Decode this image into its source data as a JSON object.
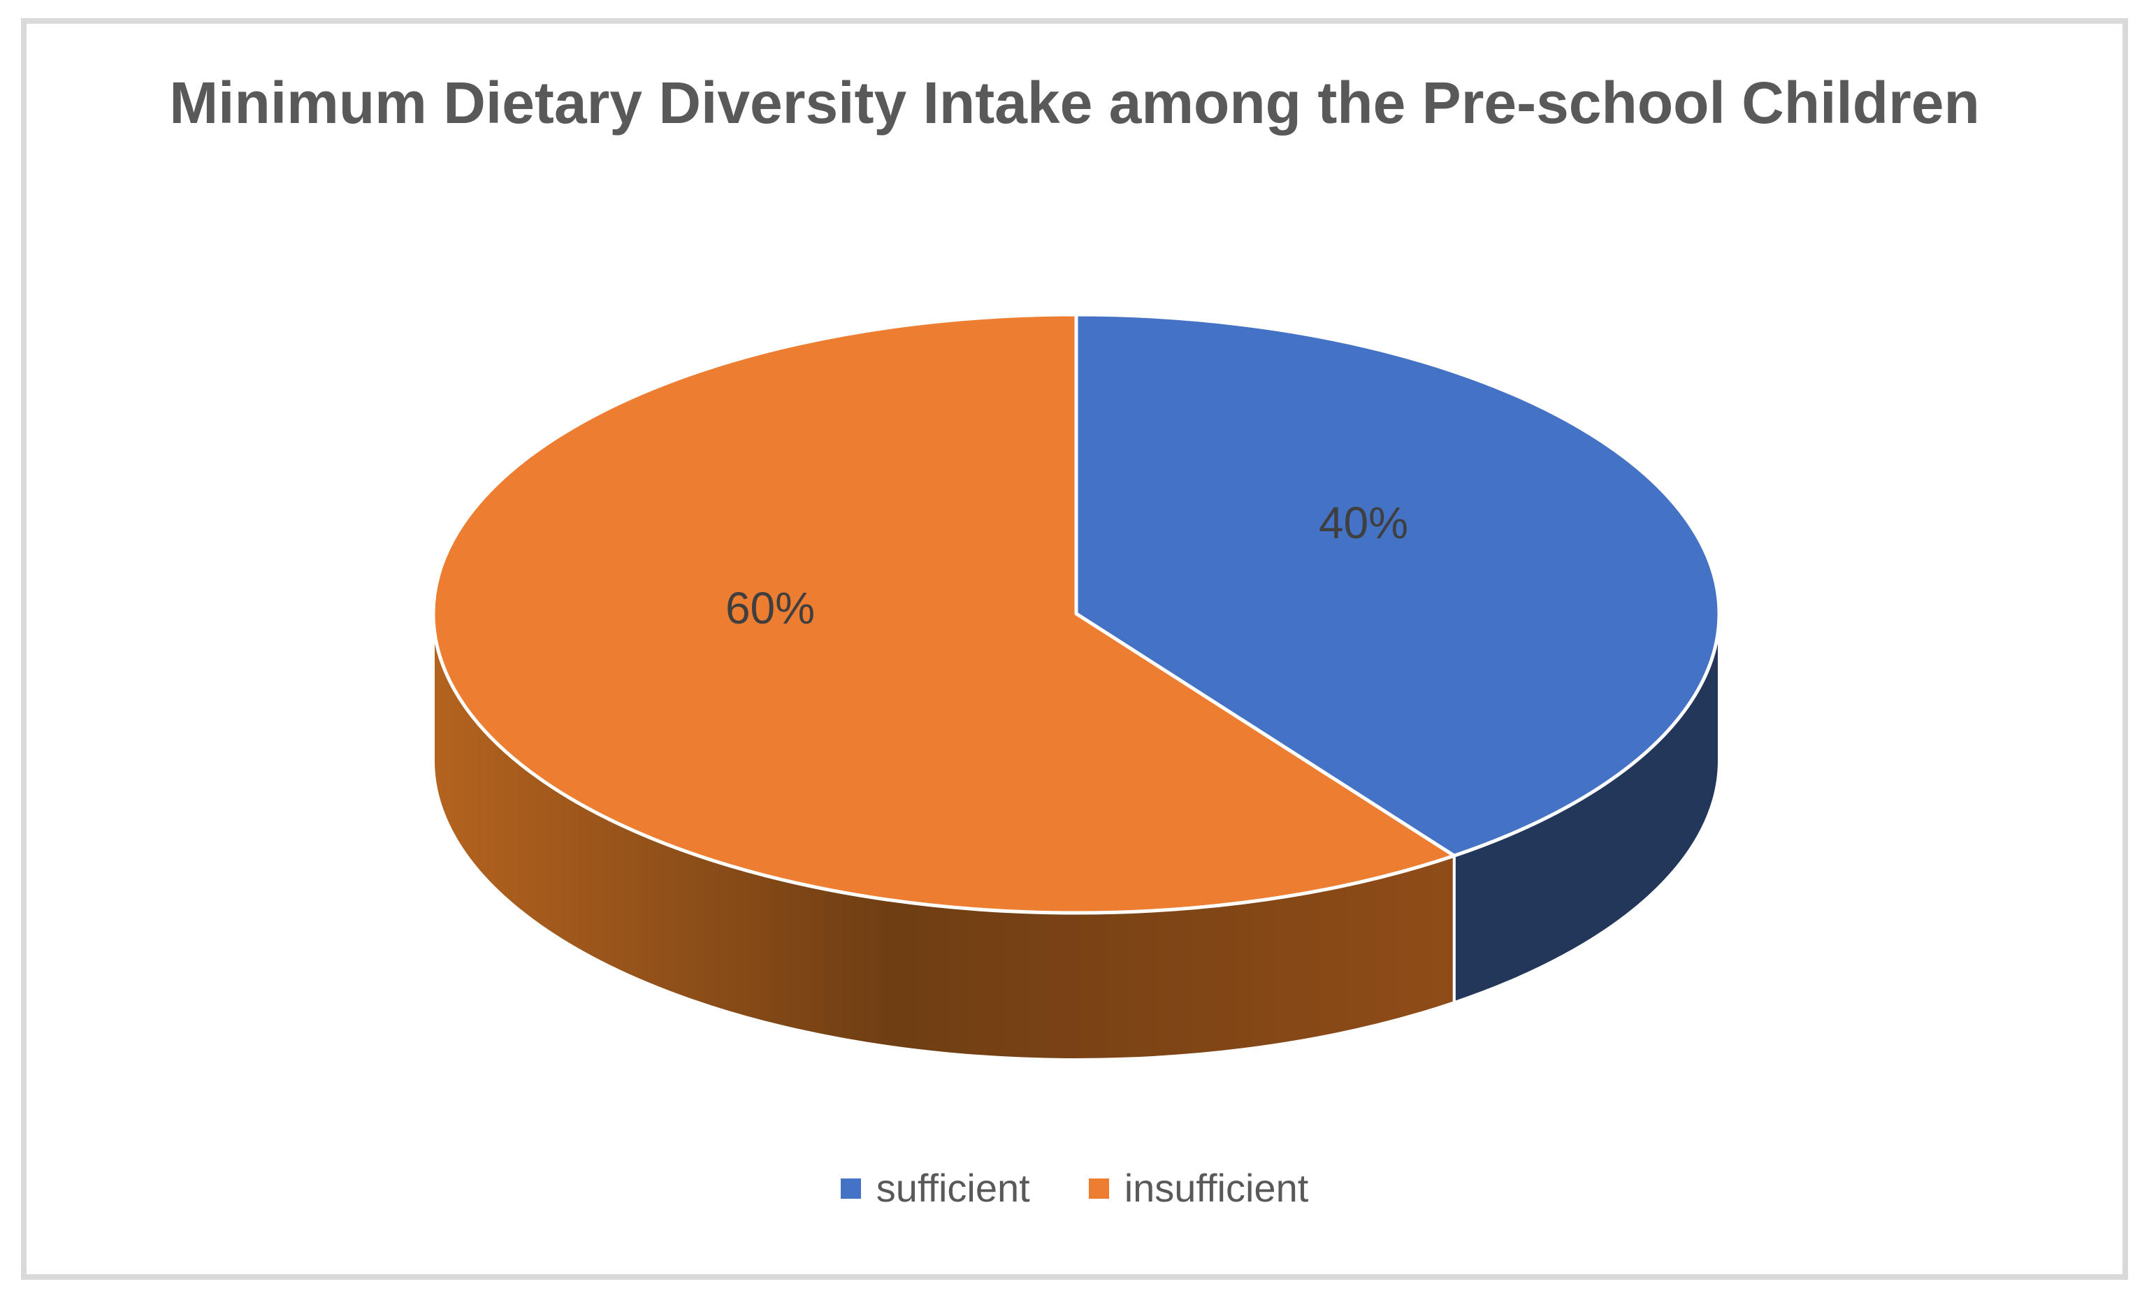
{
  "chart_data": {
    "type": "pie",
    "style": "3d-pie",
    "title": "Minimum Dietary Diversity Intake among the Pre-school Children",
    "unit": "percent",
    "start_angle": "12 o'clock, clockwise",
    "legend_position": "bottom",
    "background": "#FFFFFF",
    "categories": [
      "sufficient",
      "insufficient"
    ],
    "series": [
      {
        "name": "sufficient",
        "value": 40,
        "label": "40%",
        "color": "#4472C4",
        "side_color": "#22375A"
      },
      {
        "name": "insufficient",
        "value": 60,
        "label": "60%",
        "color": "#ED7D31",
        "side_gradient": [
          "#B4631F",
          "#6F3E13",
          "#8F4C18"
        ]
      }
    ]
  },
  "legend": {
    "items": [
      {
        "label": "sufficient",
        "color": "#4472C4"
      },
      {
        "label": "insufficient",
        "color": "#ED7D31"
      }
    ]
  },
  "colors": {
    "title_text": "#595959",
    "label_text": "#3F3F3F",
    "frame_border": "#D9D9D9",
    "slice_divider": "#FFFFFF"
  }
}
